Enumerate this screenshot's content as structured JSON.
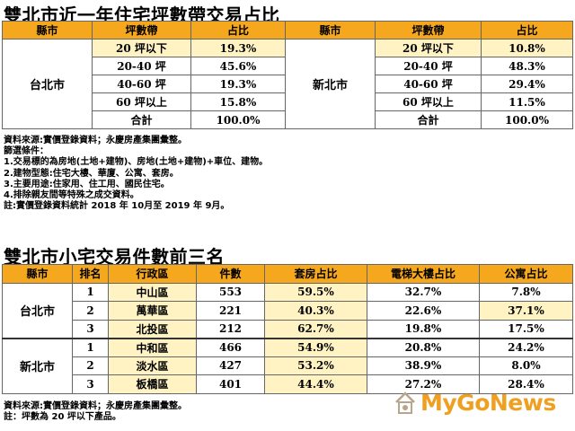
{
  "section1": {
    "title": "雙北市近一年住宅坪數帶交易占比",
    "headers": [
      "縣市",
      "坪數帶",
      "占比",
      "縣市",
      "坪數帶",
      "占比"
    ],
    "left_city": "台北市",
    "right_city": "新北市",
    "rows": [
      {
        "band": "20 坪以下",
        "tp": "19.3%",
        "ntp": "10.8%"
      },
      {
        "band": "20-40 坪",
        "tp": "45.6%",
        "ntp": "48.3%"
      },
      {
        "band": "40-60 坪",
        "tp": "19.3%",
        "ntp": "29.4%"
      },
      {
        "band": "60 坪以上",
        "tp": "15.8%",
        "ntp": "11.5%"
      },
      {
        "band": "合計",
        "tp": "100.0%",
        "ntp": "100.0%"
      }
    ],
    "notes": [
      "資料來源:實價登錄資料；永慶房產集團彙整。",
      "篩選條件：",
      "1.交易標的為房地(土地+建物)、房地(土地+建物)+車位、建物。",
      "2.建物型態:住宅大樓、華廈、公寓、套房。",
      "3.主要用途:住家用、住工用、國民住宅。",
      "4.排除親友間等特殊之成交資料。",
      "註:實價登錄資料統計 2018 年 10月至 2019 年 9月。"
    ]
  },
  "section2": {
    "title": "雙北市小宅交易件數前三名",
    "headers": [
      "縣市",
      "排名",
      "行政區",
      "件數",
      "套房占比",
      "電梯大樓占比",
      "公寓占比"
    ],
    "cities": [
      {
        "name": "台北市",
        "rows": [
          {
            "rank": "1",
            "district": "中山區",
            "count": "553",
            "suite": "59.5%",
            "elevator": "32.7%",
            "apartment": "7.8%"
          },
          {
            "rank": "2",
            "district": "萬華區",
            "count": "221",
            "suite": "40.3%",
            "elevator": "22.6%",
            "apartment": "37.1%"
          },
          {
            "rank": "3",
            "district": "北投區",
            "count": "212",
            "suite": "62.7%",
            "elevator": "19.8%",
            "apartment": "17.5%"
          }
        ]
      },
      {
        "name": "新北市",
        "rows": [
          {
            "rank": "1",
            "district": "中和區",
            "count": "466",
            "suite": "54.9%",
            "elevator": "20.8%",
            "apartment": "24.2%"
          },
          {
            "rank": "2",
            "district": "淡水區",
            "count": "427",
            "suite": "53.2%",
            "elevator": "38.9%",
            "apartment": "8.0%"
          },
          {
            "rank": "3",
            "district": "板橋區",
            "count": "401",
            "suite": "44.4%",
            "elevator": "27.2%",
            "apartment": "28.4%"
          }
        ]
      }
    ],
    "notes": [
      "資料來源:實價登錄資料；永慶房產集團彙整。",
      "註：坪數為 20 坪以下產品。"
    ]
  },
  "watermark": {
    "text": "MyGoNews",
    "color": "#f0a020"
  },
  "colors": {
    "header": "#f5a81e",
    "highlight": "#fff3c4"
  }
}
